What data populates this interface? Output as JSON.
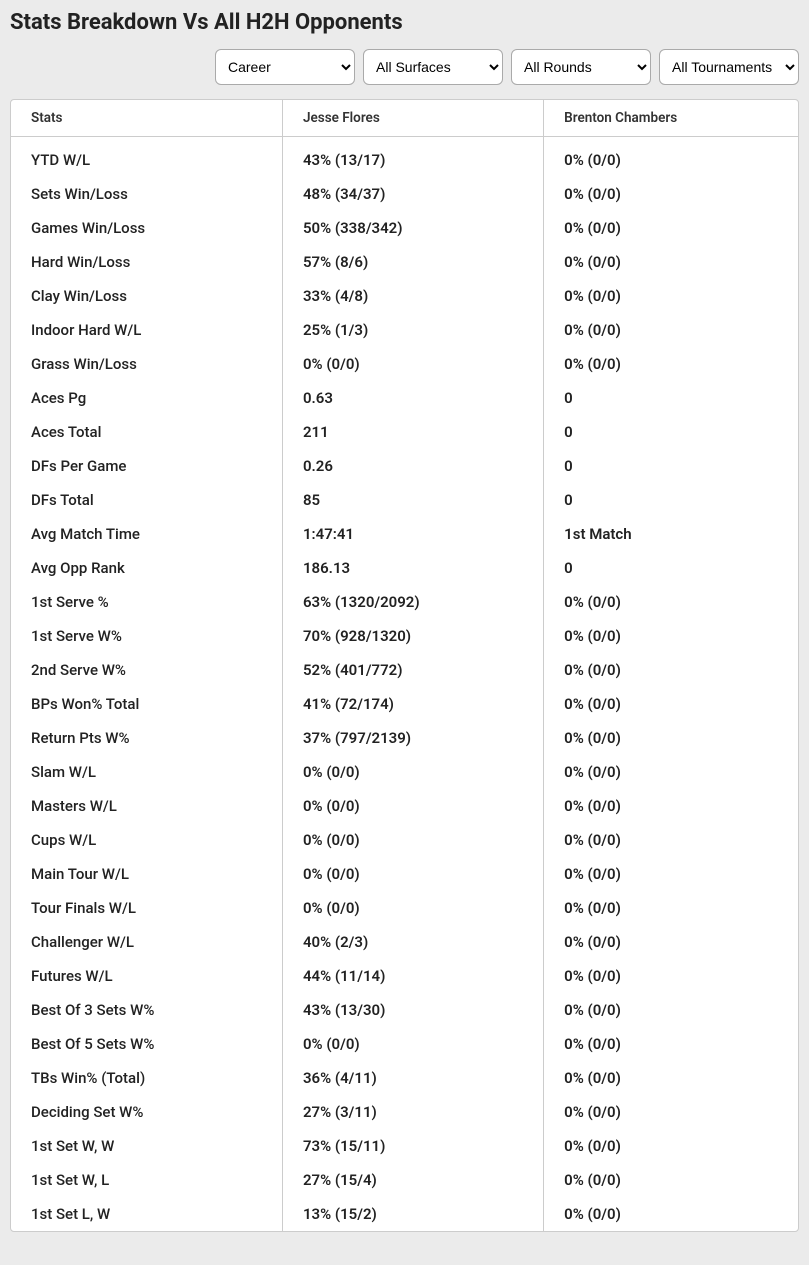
{
  "title": "Stats Breakdown Vs All H2H Opponents",
  "filters": {
    "career": "Career",
    "surfaces": "All Surfaces",
    "rounds": "All Rounds",
    "tournaments": "All Tournaments"
  },
  "columns": [
    "Stats",
    "Jesse Flores",
    "Brenton Chambers"
  ],
  "rows": [
    {
      "stat": "YTD W/L",
      "p1": "43% (13/17)",
      "p2": "0% (0/0)"
    },
    {
      "stat": "Sets Win/Loss",
      "p1": "48% (34/37)",
      "p2": "0% (0/0)"
    },
    {
      "stat": "Games Win/Loss",
      "p1": "50% (338/342)",
      "p2": "0% (0/0)"
    },
    {
      "stat": "Hard Win/Loss",
      "p1": "57% (8/6)",
      "p2": "0% (0/0)"
    },
    {
      "stat": "Clay Win/Loss",
      "p1": "33% (4/8)",
      "p2": "0% (0/0)"
    },
    {
      "stat": "Indoor Hard W/L",
      "p1": "25% (1/3)",
      "p2": "0% (0/0)"
    },
    {
      "stat": "Grass Win/Loss",
      "p1": "0% (0/0)",
      "p2": "0% (0/0)"
    },
    {
      "stat": "Aces Pg",
      "p1": "0.63",
      "p2": "0"
    },
    {
      "stat": "Aces Total",
      "p1": "211",
      "p2": "0"
    },
    {
      "stat": "DFs Per Game",
      "p1": "0.26",
      "p2": "0"
    },
    {
      "stat": "DFs Total",
      "p1": "85",
      "p2": "0"
    },
    {
      "stat": "Avg Match Time",
      "p1": "1:47:41",
      "p2": "1st Match"
    },
    {
      "stat": "Avg Opp Rank",
      "p1": "186.13",
      "p2": "0"
    },
    {
      "stat": "1st Serve %",
      "p1": "63% (1320/2092)",
      "p2": "0% (0/0)"
    },
    {
      "stat": "1st Serve W%",
      "p1": "70% (928/1320)",
      "p2": "0% (0/0)"
    },
    {
      "stat": "2nd Serve W%",
      "p1": "52% (401/772)",
      "p2": "0% (0/0)"
    },
    {
      "stat": "BPs Won% Total",
      "p1": "41% (72/174)",
      "p2": "0% (0/0)"
    },
    {
      "stat": "Return Pts W%",
      "p1": "37% (797/2139)",
      "p2": "0% (0/0)"
    },
    {
      "stat": "Slam W/L",
      "p1": "0% (0/0)",
      "p2": "0% (0/0)"
    },
    {
      "stat": "Masters W/L",
      "p1": "0% (0/0)",
      "p2": "0% (0/0)"
    },
    {
      "stat": "Cups W/L",
      "p1": "0% (0/0)",
      "p2": "0% (0/0)"
    },
    {
      "stat": "Main Tour W/L",
      "p1": "0% (0/0)",
      "p2": "0% (0/0)"
    },
    {
      "stat": "Tour Finals W/L",
      "p1": "0% (0/0)",
      "p2": "0% (0/0)"
    },
    {
      "stat": "Challenger W/L",
      "p1": "40% (2/3)",
      "p2": "0% (0/0)"
    },
    {
      "stat": "Futures W/L",
      "p1": "44% (11/14)",
      "p2": "0% (0/0)"
    },
    {
      "stat": "Best Of 3 Sets W%",
      "p1": "43% (13/30)",
      "p2": "0% (0/0)"
    },
    {
      "stat": "Best Of 5 Sets W%",
      "p1": "0% (0/0)",
      "p2": "0% (0/0)"
    },
    {
      "stat": "TBs Win% (Total)",
      "p1": "36% (4/11)",
      "p2": "0% (0/0)"
    },
    {
      "stat": "Deciding Set W%",
      "p1": "27% (3/11)",
      "p2": "0% (0/0)"
    },
    {
      "stat": "1st Set W, W",
      "p1": "73% (15/11)",
      "p2": "0% (0/0)"
    },
    {
      "stat": "1st Set W, L",
      "p1": "27% (15/4)",
      "p2": "0% (0/0)"
    },
    {
      "stat": "1st Set L, W",
      "p1": "13% (15/2)",
      "p2": "0% (0/0)"
    }
  ]
}
